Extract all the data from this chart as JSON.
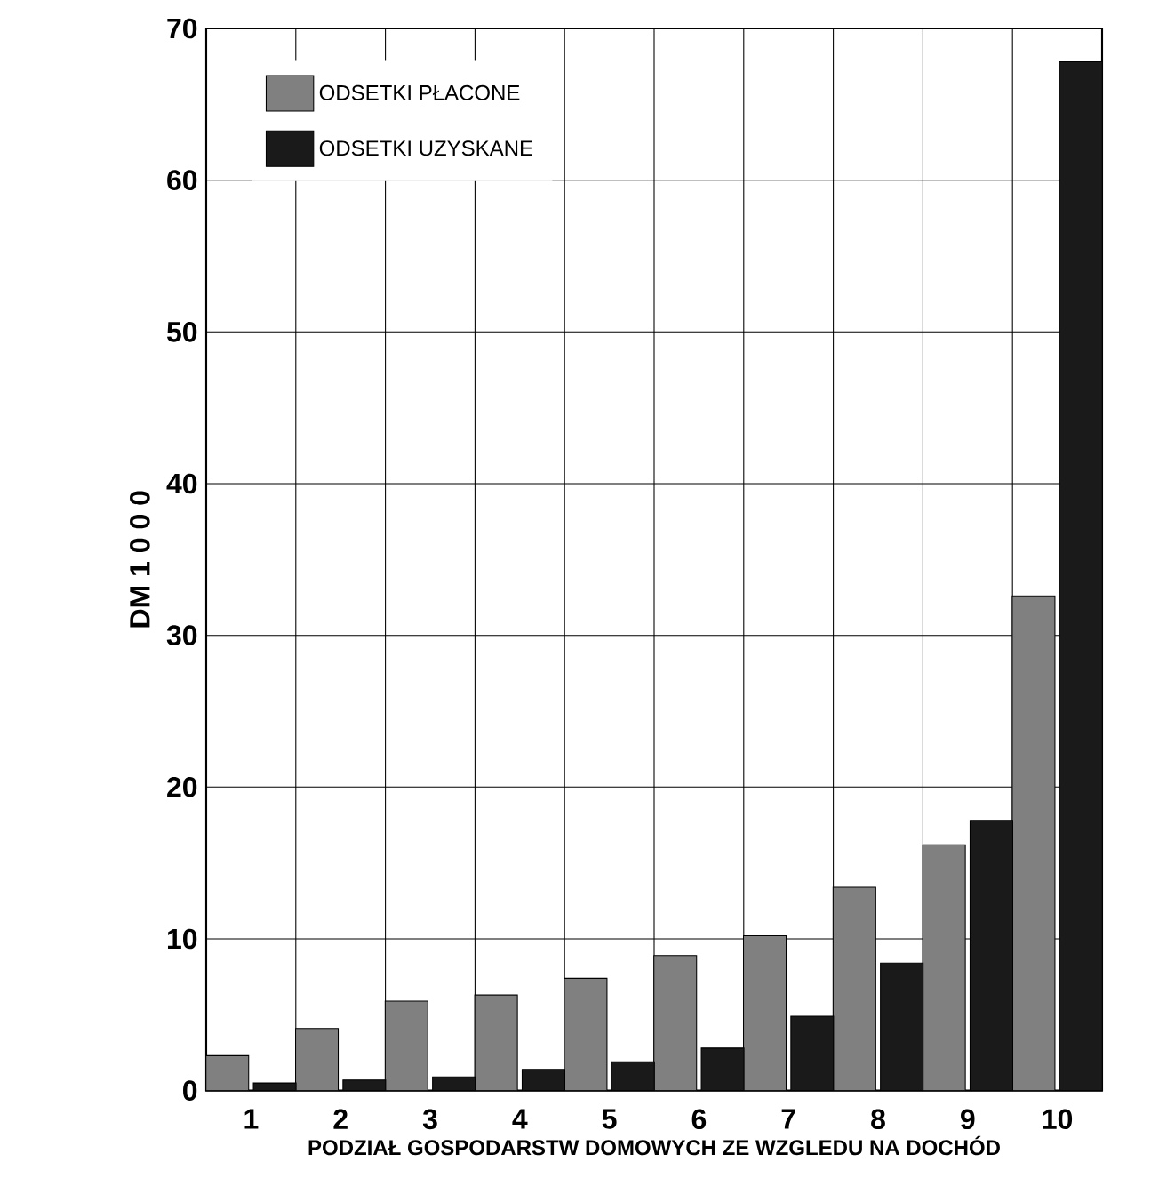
{
  "chart_data": {
    "type": "bar",
    "xlabel": "PODZIAŁ GOSPODARSTW DOMOWYCH ZE WZGLEDU NA DOCHÓD",
    "ylabel": "DM 1 0 0 0",
    "categories": [
      "1",
      "2",
      "3",
      "4",
      "5",
      "6",
      "7",
      "8",
      "9",
      "10"
    ],
    "series": [
      {
        "name": "ODSETKI PŁACONE",
        "color": "#808080",
        "values": [
          2.3,
          4.1,
          5.9,
          6.3,
          7.4,
          8.9,
          10.2,
          13.4,
          16.2,
          32.6
        ]
      },
      {
        "name": "ODSETKI UZYSKANE",
        "color": "#1a1a1a",
        "values": [
          0.5,
          0.7,
          0.9,
          1.4,
          1.9,
          2.8,
          4.9,
          8.4,
          17.8,
          67.8
        ]
      }
    ],
    "ylim": [
      0,
      70
    ],
    "yticks": [
      0,
      10,
      20,
      30,
      40,
      50,
      60,
      70
    ],
    "grid": true,
    "legend": "top left"
  }
}
